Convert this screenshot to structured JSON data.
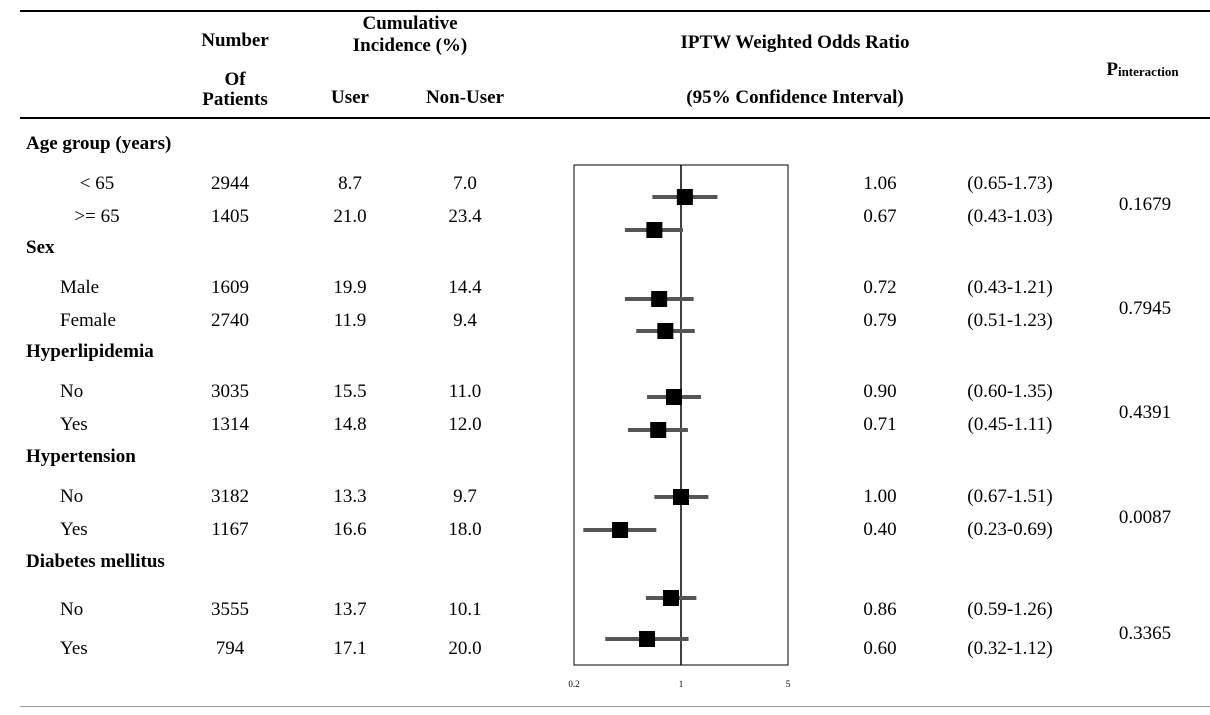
{
  "header": {
    "number": "Number",
    "of_patients_1": "Of",
    "of_patients_2": "Patients",
    "cumulative_1": "Cumulative",
    "cumulative_2": "Incidence (%)",
    "user": "User",
    "non_user": "Non-User",
    "or_title": "IPTW Weighted Odds Ratio",
    "ci_title": "(95% Confidence Interval)",
    "p_main": "P",
    "p_sub": "interaction"
  },
  "groups": [
    {
      "label": "Age group (years)",
      "p": "0.1679",
      "rows": [
        {
          "label": "< 65",
          "n": "2944",
          "user": "8.7",
          "nonuser": "7.0",
          "or_text": "1.06",
          "ci_text": "(0.65-1.73)"
        },
        {
          "label": ">= 65",
          "n": "1405",
          "user": "21.0",
          "nonuser": "23.4",
          "or_text": "0.67",
          "ci_text": "(0.43-1.03)"
        }
      ]
    },
    {
      "label": "Sex",
      "p": "0.7945",
      "rows": [
        {
          "label": "Male",
          "n": "1609",
          "user": "19.9",
          "nonuser": "14.4",
          "or_text": "0.72",
          "ci_text": "(0.43-1.21)"
        },
        {
          "label": "Female",
          "n": "2740",
          "user": "11.9",
          "nonuser": "9.4",
          "or_text": "0.79",
          "ci_text": "(0.51-1.23)"
        }
      ]
    },
    {
      "label": "Hyperlipidemia",
      "p": "0.4391",
      "rows": [
        {
          "label": "No",
          "n": "3035",
          "user": "15.5",
          "nonuser": "11.0",
          "or_text": "0.90",
          "ci_text": "(0.60-1.35)"
        },
        {
          "label": "Yes",
          "n": "1314",
          "user": "14.8",
          "nonuser": "12.0",
          "or_text": "0.71",
          "ci_text": "(0.45-1.11)"
        }
      ]
    },
    {
      "label": "Hypertension",
      "p": "0.0087",
      "rows": [
        {
          "label": "No",
          "n": "3182",
          "user": "13.3",
          "nonuser": "9.7",
          "or_text": "1.00",
          "ci_text": "(0.67-1.51)"
        },
        {
          "label": "Yes",
          "n": "1167",
          "user": "16.6",
          "nonuser": "18.0",
          "or_text": "0.40",
          "ci_text": "(0.23-0.69)"
        }
      ]
    },
    {
      "label": "Diabetes mellitus",
      "p": "0.3365",
      "rows": [
        {
          "label": "No",
          "n": "3555",
          "user": "13.7",
          "nonuser": "10.1",
          "or_text": "0.86",
          "ci_text": "(0.59-1.26)"
        },
        {
          "label": "Yes",
          "n": "794",
          "user": "17.1",
          "nonuser": "20.0",
          "or_text": "0.60",
          "ci_text": "(0.32-1.12)"
        }
      ]
    }
  ],
  "chart_data": {
    "type": "forest",
    "x_scale": "log",
    "xlim": [
      0.2,
      5
    ],
    "reference_line": 1,
    "tick_labels": [
      "0.2",
      "1",
      "5"
    ],
    "ticks": [
      0.2,
      1,
      5
    ],
    "series": [
      {
        "category": "< 65",
        "or": 1.06,
        "lo": 0.65,
        "hi": 1.73
      },
      {
        "category": ">= 65",
        "or": 0.67,
        "lo": 0.43,
        "hi": 1.03
      },
      {
        "category": "Male",
        "or": 0.72,
        "lo": 0.43,
        "hi": 1.21
      },
      {
        "category": "Female",
        "or": 0.79,
        "lo": 0.51,
        "hi": 1.23
      },
      {
        "category": "No",
        "or": 0.9,
        "lo": 0.6,
        "hi": 1.35
      },
      {
        "category": "Yes",
        "or": 0.71,
        "lo": 0.45,
        "hi": 1.11
      },
      {
        "category": "No",
        "or": 1.0,
        "lo": 0.67,
        "hi": 1.51
      },
      {
        "category": "Yes",
        "or": 0.4,
        "lo": 0.23,
        "hi": 0.69
      },
      {
        "category": "No",
        "or": 0.86,
        "lo": 0.59,
        "hi": 1.26
      },
      {
        "category": "Yes",
        "or": 0.6,
        "lo": 0.32,
        "hi": 1.12
      }
    ],
    "colors": {
      "ci": "#555555",
      "marker": "#000000",
      "axis": "#000000"
    }
  }
}
